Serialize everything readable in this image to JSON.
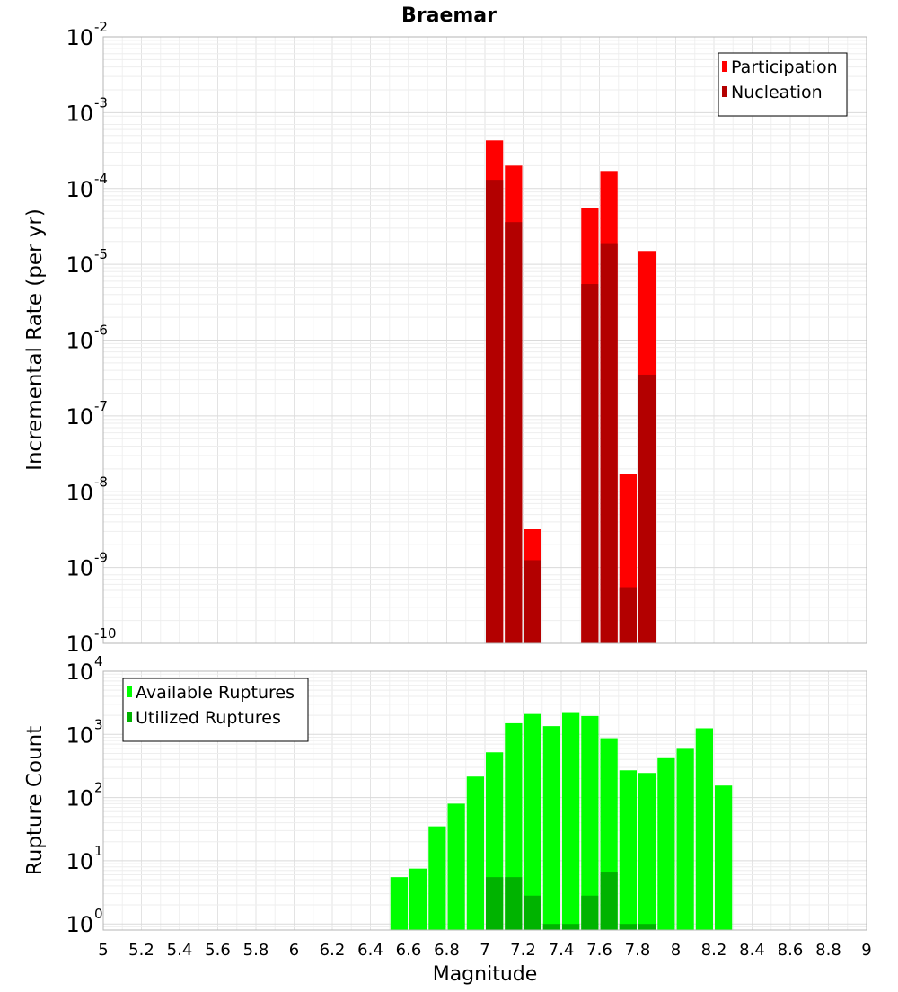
{
  "title": "Braemar",
  "chart_data": [
    {
      "type": "bar",
      "title": "Braemar",
      "xlabel": "",
      "ylabel": "Incremental Rate (per yr)",
      "yscale": "log",
      "xlim": [
        5,
        9
      ],
      "ylim": [
        1e-10,
        0.01
      ],
      "bin_width": 0.1,
      "y_tick_exponents": [
        -10,
        -9,
        -8,
        -7,
        -6,
        -5,
        -4,
        -3,
        -2
      ],
      "legend_position": "top-right",
      "grid": true,
      "series": [
        {
          "name": "Participation",
          "color": "#ff0000",
          "points": [
            {
              "x": 7.05,
              "y": 0.00043
            },
            {
              "x": 7.15,
              "y": 0.0002
            },
            {
              "x": 7.25,
              "y": 3.2e-09
            },
            {
              "x": 7.55,
              "y": 5.5e-05
            },
            {
              "x": 7.65,
              "y": 0.00017
            },
            {
              "x": 7.75,
              "y": 1.7e-08
            },
            {
              "x": 7.85,
              "y": 1.5e-05
            }
          ]
        },
        {
          "name": "Nucleation",
          "color": "#b30000",
          "points": [
            {
              "x": 7.05,
              "y": 0.00013
            },
            {
              "x": 7.15,
              "y": 3.6e-05
            },
            {
              "x": 7.25,
              "y": 1.25e-09
            },
            {
              "x": 7.55,
              "y": 5.5e-06
            },
            {
              "x": 7.65,
              "y": 1.9e-05
            },
            {
              "x": 7.75,
              "y": 5.5e-10
            },
            {
              "x": 7.85,
              "y": 3.5e-07
            }
          ]
        }
      ]
    },
    {
      "type": "bar",
      "title": "",
      "xlabel": "Magnitude",
      "ylabel": "Rupture Count",
      "yscale": "log",
      "xlim": [
        5,
        9
      ],
      "ylim": [
        0.8,
        10000
      ],
      "bin_width": 0.1,
      "y_tick_exponents": [
        0,
        1,
        2,
        3,
        4
      ],
      "x_ticks": [
        "5",
        "5.2",
        "5.4",
        "5.6",
        "5.8",
        "6",
        "6.2",
        "6.4",
        "6.6",
        "6.8",
        "7",
        "7.2",
        "7.4",
        "7.6",
        "7.8",
        "8",
        "8.2",
        "8.4",
        "8.6",
        "8.8",
        "9"
      ],
      "legend_position": "top-left",
      "grid": true,
      "series": [
        {
          "name": "Available Ruptures",
          "color": "#00ff00",
          "points": [
            {
              "x": 6.55,
              "y": 5.5
            },
            {
              "x": 6.65,
              "y": 7.5
            },
            {
              "x": 6.75,
              "y": 35
            },
            {
              "x": 6.85,
              "y": 80
            },
            {
              "x": 6.95,
              "y": 215
            },
            {
              "x": 7.05,
              "y": 520
            },
            {
              "x": 7.15,
              "y": 1500
            },
            {
              "x": 7.25,
              "y": 2100
            },
            {
              "x": 7.35,
              "y": 1350
            },
            {
              "x": 7.45,
              "y": 2250
            },
            {
              "x": 7.55,
              "y": 1950
            },
            {
              "x": 7.65,
              "y": 870
            },
            {
              "x": 7.75,
              "y": 270
            },
            {
              "x": 7.85,
              "y": 245
            },
            {
              "x": 7.95,
              "y": 420
            },
            {
              "x": 8.05,
              "y": 590
            },
            {
              "x": 8.15,
              "y": 1250
            },
            {
              "x": 8.25,
              "y": 155
            }
          ]
        },
        {
          "name": "Utilized Ruptures",
          "color": "#00b300",
          "points": [
            {
              "x": 7.05,
              "y": 5.5
            },
            {
              "x": 7.15,
              "y": 5.5
            },
            {
              "x": 7.25,
              "y": 2.8
            },
            {
              "x": 7.35,
              "y": 1
            },
            {
              "x": 7.45,
              "y": 1
            },
            {
              "x": 7.55,
              "y": 2.8
            },
            {
              "x": 7.65,
              "y": 6.5
            },
            {
              "x": 7.75,
              "y": 1
            },
            {
              "x": 7.85,
              "y": 1
            }
          ]
        }
      ]
    }
  ]
}
